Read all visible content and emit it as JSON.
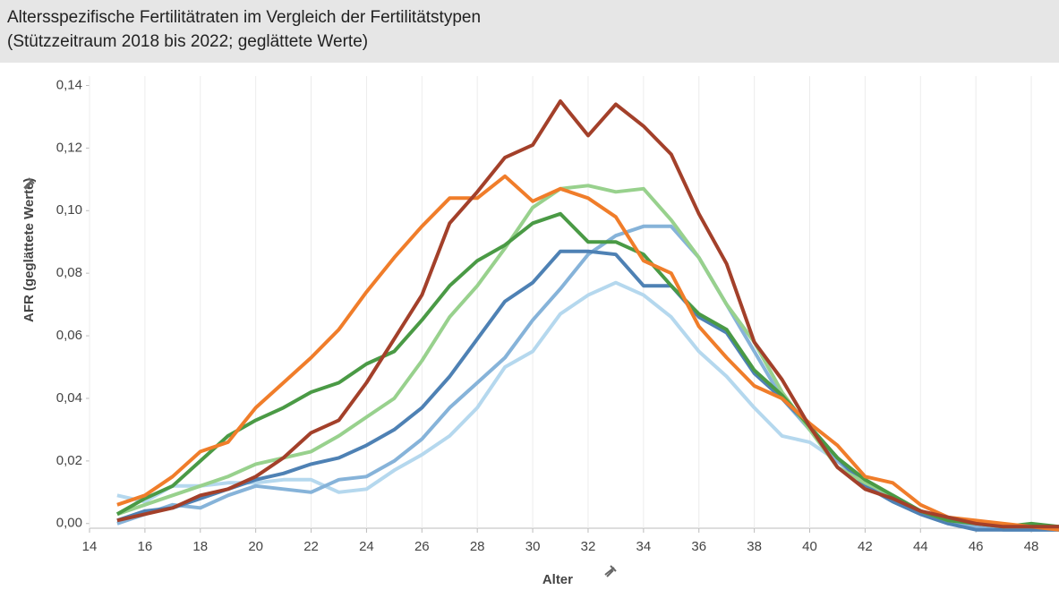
{
  "chart_data": {
    "type": "line",
    "title": "Altersspezifische Fertilitätraten im Vergleich der Fertilitätstypen",
    "subtitle": "(Stützzeitraum 2018 bis 2022; geglättete Werte)",
    "x_label": "Alter",
    "y_label": "AFR (geglättete Werte)",
    "x": [
      15,
      16,
      17,
      18,
      19,
      20,
      21,
      22,
      23,
      24,
      25,
      26,
      27,
      28,
      29,
      30,
      31,
      32,
      33,
      34,
      35,
      36,
      37,
      38,
      39,
      40,
      41,
      42,
      43,
      44,
      45,
      46,
      47,
      48,
      49
    ],
    "series": [
      {
        "color": "#b5d8ee",
        "values": [
          0.009,
          0.007,
          0.012,
          0.012,
          0.013,
          0.013,
          0.014,
          0.014,
          0.01,
          0.011,
          0.017,
          0.022,
          0.028,
          0.037,
          0.05,
          0.055,
          0.067,
          0.073,
          0.077,
          0.073,
          0.066,
          0.055,
          0.047,
          0.037,
          0.028,
          0.026,
          0.02,
          0.012,
          0.007,
          0.003,
          0.0,
          -0.001,
          -0.002,
          -0.002,
          -0.002
        ]
      },
      {
        "color": "#86b3d9",
        "values": [
          0.0,
          0.003,
          0.006,
          0.005,
          0.009,
          0.012,
          0.011,
          0.01,
          0.014,
          0.015,
          0.02,
          0.027,
          0.037,
          0.045,
          0.053,
          0.065,
          0.075,
          0.086,
          0.092,
          0.095,
          0.095,
          0.085,
          0.07,
          0.055,
          0.04,
          0.03,
          0.02,
          0.013,
          0.008,
          0.004,
          0.001,
          -0.001,
          -0.002,
          -0.002,
          -0.002
        ]
      },
      {
        "color": "#4e81b4",
        "values": [
          0.001,
          0.004,
          0.005,
          0.008,
          0.011,
          0.014,
          0.016,
          0.019,
          0.021,
          0.025,
          0.03,
          0.037,
          0.047,
          0.059,
          0.071,
          0.077,
          0.087,
          0.087,
          0.086,
          0.076,
          0.076,
          0.066,
          0.061,
          0.048,
          0.04,
          0.031,
          0.021,
          0.012,
          0.007,
          0.003,
          0.0,
          -0.002,
          -0.002,
          -0.002,
          -0.002
        ]
      },
      {
        "color": "#98d18d",
        "values": [
          0.003,
          0.006,
          0.009,
          0.012,
          0.015,
          0.019,
          0.021,
          0.023,
          0.028,
          0.034,
          0.04,
          0.052,
          0.066,
          0.076,
          0.088,
          0.101,
          0.107,
          0.108,
          0.106,
          0.107,
          0.097,
          0.085,
          0.07,
          0.058,
          0.042,
          0.03,
          0.018,
          0.013,
          0.009,
          0.004,
          0.001,
          0.0,
          -0.001,
          -0.001,
          -0.001
        ]
      },
      {
        "color": "#4a9a45",
        "values": [
          0.003,
          0.008,
          0.012,
          0.02,
          0.028,
          0.033,
          0.037,
          0.042,
          0.045,
          0.051,
          0.055,
          0.065,
          0.076,
          0.084,
          0.089,
          0.096,
          0.099,
          0.09,
          0.09,
          0.086,
          0.076,
          0.067,
          0.062,
          0.049,
          0.041,
          0.031,
          0.021,
          0.014,
          0.009,
          0.004,
          0.001,
          0.0,
          -0.001,
          0.0,
          -0.001
        ]
      },
      {
        "color": "#f07d2a",
        "values": [
          0.006,
          0.009,
          0.015,
          0.023,
          0.026,
          0.037,
          0.045,
          0.053,
          0.062,
          0.074,
          0.085,
          0.095,
          0.104,
          0.104,
          0.111,
          0.103,
          0.107,
          0.104,
          0.098,
          0.084,
          0.08,
          0.063,
          0.053,
          0.044,
          0.04,
          0.032,
          0.025,
          0.015,
          0.013,
          0.006,
          0.002,
          0.001,
          0.0,
          -0.001,
          -0.002
        ]
      },
      {
        "color": "#a3402a",
        "values": [
          0.001,
          0.003,
          0.005,
          0.009,
          0.011,
          0.015,
          0.021,
          0.029,
          0.033,
          0.045,
          0.059,
          0.073,
          0.096,
          0.106,
          0.117,
          0.121,
          0.135,
          0.124,
          0.134,
          0.127,
          0.118,
          0.099,
          0.083,
          0.058,
          0.046,
          0.031,
          0.018,
          0.011,
          0.008,
          0.004,
          0.002,
          0.0,
          -0.001,
          -0.001,
          -0.001
        ]
      }
    ],
    "xlim": [
      14,
      49
    ],
    "xticks": [
      14,
      16,
      18,
      20,
      22,
      24,
      26,
      28,
      30,
      32,
      34,
      36,
      38,
      40,
      42,
      44,
      46,
      48
    ],
    "ylim": [
      -0.0015,
      0.143
    ],
    "yticks": [
      {
        "value": 0,
        "label": "0,00"
      },
      {
        "value": 0.02,
        "label": "0,02"
      },
      {
        "value": 0.04,
        "label": "0,04"
      },
      {
        "value": 0.06,
        "label": "0,06"
      },
      {
        "value": 0.08,
        "label": "0,08"
      },
      {
        "value": 0.1,
        "label": "0,10"
      },
      {
        "value": 0.12,
        "label": "0,12"
      },
      {
        "value": 0.14,
        "label": "0,14"
      }
    ],
    "grid": "x"
  }
}
